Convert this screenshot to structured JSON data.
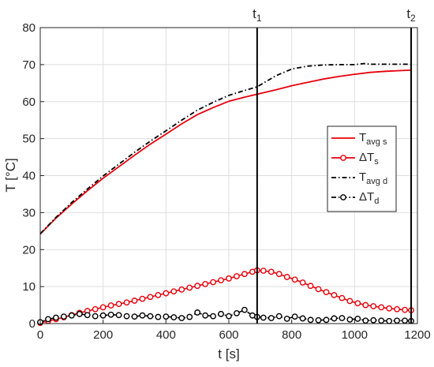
{
  "chart_data": {
    "type": "line",
    "xlabel": "t [s]",
    "ylabel": "T [°C]",
    "xlim": [
      0,
      1200
    ],
    "ylim": [
      0,
      80
    ],
    "xticks": [
      0,
      200,
      400,
      600,
      800,
      1000,
      1200
    ],
    "yticks": [
      0,
      10,
      20,
      30,
      40,
      50,
      60,
      70,
      80
    ],
    "grid": true,
    "legend_position": "right",
    "markers": [
      {
        "name": "t",
        "sub": "1",
        "x": 690
      },
      {
        "name": "t",
        "sub": "2",
        "x": 1180
      }
    ],
    "series": [
      {
        "name": "T",
        "name_sub": "avg s",
        "color": "#e8000b",
        "dash": "solid",
        "marker": "none",
        "x": [
          0,
          50,
          100,
          150,
          200,
          250,
          300,
          350,
          400,
          450,
          500,
          550,
          600,
          650,
          690,
          750,
          800,
          850,
          900,
          950,
          1000,
          1050,
          1100,
          1150,
          1180
        ],
        "y": [
          24.2,
          28.5,
          32.3,
          35.9,
          39.3,
          42.4,
          45.5,
          48.5,
          51.2,
          54.0,
          56.5,
          58.4,
          60.1,
          61.2,
          62.0,
          63.2,
          64.3,
          65.2,
          66.1,
          66.8,
          67.4,
          67.9,
          68.2,
          68.4,
          68.5
        ]
      },
      {
        "name": "ΔT",
        "name_sub": "s",
        "color": "#e8000b",
        "dash": "solid",
        "marker": "circle",
        "x": [
          0,
          25,
          50,
          75,
          100,
          125,
          150,
          175,
          200,
          225,
          250,
          275,
          300,
          325,
          350,
          375,
          400,
          425,
          450,
          475,
          500,
          525,
          550,
          575,
          600,
          625,
          650,
          675,
          690,
          710,
          735,
          760,
          785,
          810,
          835,
          860,
          885,
          910,
          935,
          960,
          985,
          1010,
          1035,
          1060,
          1085,
          1110,
          1135,
          1160,
          1180
        ],
        "y": [
          0.2,
          0.7,
          1.2,
          1.7,
          2.3,
          2.9,
          3.4,
          3.9,
          4.4,
          4.9,
          5.3,
          5.7,
          6.2,
          6.7,
          7.2,
          7.7,
          8.2,
          8.7,
          9.2,
          9.7,
          10.2,
          10.7,
          11.2,
          11.7,
          12.2,
          12.8,
          13.4,
          14.0,
          14.4,
          14.3,
          14.0,
          13.4,
          12.6,
          11.9,
          11.1,
          10.2,
          9.3,
          8.5,
          7.7,
          6.9,
          6.1,
          5.5,
          5.0,
          4.7,
          4.4,
          4.1,
          3.9,
          3.7,
          3.6
        ]
      },
      {
        "name": "T",
        "name_sub": "avg d",
        "color": "#000000",
        "dash": "dashdot",
        "marker": "none",
        "x": [
          0,
          50,
          100,
          150,
          200,
          250,
          300,
          350,
          400,
          450,
          500,
          550,
          600,
          650,
          690,
          750,
          800,
          850,
          900,
          950,
          1000,
          1030,
          1050,
          1100,
          1150,
          1180
        ],
        "y": [
          24.3,
          28.7,
          32.7,
          36.4,
          39.9,
          43.1,
          46.3,
          49.3,
          52.1,
          55.0,
          57.7,
          59.8,
          61.7,
          63.0,
          64.0,
          67.0,
          68.8,
          69.6,
          69.9,
          70.0,
          70.0,
          70.3,
          70.1,
          70.1,
          70.1,
          70.1
        ]
      },
      {
        "name": "ΔT",
        "name_sub": "d",
        "color": "#000000",
        "dash": "dashdot",
        "marker": "circle",
        "x": [
          0,
          25,
          50,
          75,
          100,
          125,
          150,
          175,
          200,
          225,
          250,
          275,
          300,
          325,
          350,
          375,
          400,
          425,
          450,
          475,
          500,
          525,
          550,
          575,
          600,
          625,
          650,
          675,
          690,
          710,
          735,
          760,
          785,
          810,
          835,
          860,
          885,
          910,
          935,
          960,
          985,
          1010,
          1035,
          1060,
          1085,
          1110,
          1135,
          1160,
          1180
        ],
        "y": [
          0.4,
          1.2,
          1.6,
          1.9,
          2.2,
          2.6,
          2.3,
          2.0,
          2.2,
          2.4,
          2.3,
          2.0,
          1.9,
          2.2,
          2.0,
          1.8,
          1.9,
          1.7,
          1.5,
          1.8,
          3.0,
          2.2,
          2.0,
          2.6,
          2.0,
          2.8,
          3.7,
          2.2,
          1.8,
          1.6,
          1.5,
          2.0,
          1.3,
          1.9,
          1.4,
          1.0,
          0.9,
          1.0,
          1.4,
          1.5,
          1.1,
          1.3,
          0.8,
          0.9,
          0.8,
          0.7,
          0.8,
          0.8,
          0.7
        ]
      }
    ]
  }
}
